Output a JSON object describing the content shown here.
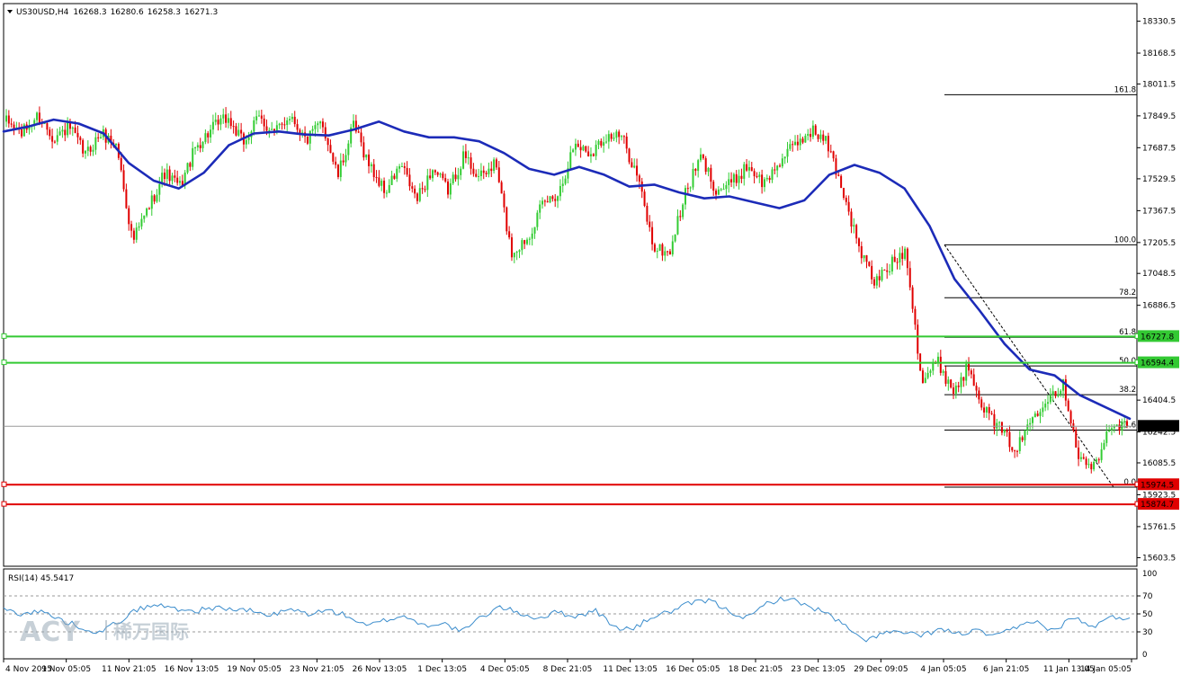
{
  "chart_data": {
    "type": "candlestick",
    "header": {
      "symbol": "US30USD,H4",
      "open": "16268.3",
      "high": "16280.6",
      "low": "16258.3",
      "close": "16271.3"
    },
    "price_axis": {
      "ticks": [
        "18330.5",
        "18168.5",
        "18011.5",
        "17849.5",
        "17687.5",
        "17529.5",
        "17367.5",
        "17205.5",
        "17048.5",
        "16886.5",
        "16404.5",
        "16242.5",
        "16085.5",
        "15923.5",
        "15761.5",
        "15603.5"
      ],
      "range": [
        15560,
        18420
      ]
    },
    "time_axis": {
      "labels": [
        "4 Nov 2015",
        "9 Nov 05:05",
        "11 Nov 21:05",
        "16 Nov 13:05",
        "19 Nov 05:05",
        "23 Nov 21:05",
        "26 Nov 13:05",
        "1 Dec 13:05",
        "4 Dec 05:05",
        "8 Dec 21:05",
        "11 Dec 13:05",
        "16 Dec 05:05",
        "18 Dec 21:05",
        "23 Dec 13:05",
        "29 Dec 09:05",
        "4 Jan 05:05",
        "6 Jan 21:05",
        "11 Jan 13:05",
        "14 Jan 05:05"
      ]
    },
    "price_path": [
      17820,
      17760,
      17850,
      17740,
      17790,
      17650,
      17760,
      17700,
      17210,
      17380,
      17560,
      17490,
      17690,
      17780,
      17840,
      17710,
      17840,
      17760,
      17860,
      17720,
      17820,
      17540,
      17800,
      17600,
      17460,
      17600,
      17420,
      17580,
      17470,
      17650,
      17530,
      17610,
      17150,
      17230,
      17400,
      17460,
      17710,
      17660,
      17750,
      17740,
      17540,
      17180,
      17150,
      17450,
      17640,
      17470,
      17510,
      17600,
      17500,
      17620,
      17700,
      17780,
      17710,
      17470,
      17180,
      17000,
      17090,
      17170,
      16500,
      16600,
      16450,
      16580,
      16350,
      16250,
      16150,
      16320,
      16430,
      16480,
      16100,
      16060,
      16290,
      16271
    ],
    "moving_average": [
      17770,
      17795,
      17830,
      17810,
      17760,
      17610,
      17520,
      17480,
      17560,
      17700,
      17760,
      17770,
      17755,
      17750,
      17780,
      17820,
      17770,
      17740,
      17740,
      17720,
      17660,
      17580,
      17550,
      17590,
      17550,
      17490,
      17500,
      17460,
      17430,
      17440,
      17410,
      17380,
      17420,
      17550,
      17600,
      17560,
      17480,
      17290,
      17020,
      16860,
      16690,
      16560,
      16530,
      16430,
      16370,
      16310
    ],
    "rsi": {
      "label": "RSI(14) 45.5417",
      "levels": [
        "70",
        "50",
        "30"
      ],
      "scale_top": "100",
      "scale_bottom": "0",
      "values": [
        55,
        50,
        53,
        43,
        36,
        29,
        41,
        55,
        60,
        56,
        53,
        57,
        55,
        53,
        48,
        55,
        50,
        54,
        48,
        36,
        43,
        48,
        37,
        40,
        30,
        46,
        58,
        51,
        45,
        52,
        47,
        54,
        35,
        33,
        47,
        53,
        62,
        65,
        53,
        45,
        62,
        68,
        60,
        52,
        38,
        20,
        28,
        30,
        25,
        33,
        28,
        31,
        25,
        34,
        43,
        30,
        47,
        35,
        46,
        45
      ]
    },
    "fibonacci": {
      "levels": [
        {
          "label": "161.8",
          "price": 17957
        },
        {
          "label": "100.0",
          "price": 17194
        },
        {
          "label": "78.2",
          "price": 16925
        },
        {
          "label": "61.8",
          "price": 16724
        },
        {
          "label": "50.0",
          "price": 16578
        },
        {
          "label": "38.2",
          "price": 16432
        },
        {
          "label": "23.6",
          "price": 16252
        },
        {
          "label": "0.0",
          "price": 15962
        }
      ]
    },
    "support_resistance": [
      {
        "value": "16727.8",
        "price": 16727.8,
        "color": "#33c933"
      },
      {
        "value": "16594.4",
        "price": 16594.4,
        "color": "#33c933"
      },
      {
        "value": "15974.5",
        "price": 15974.5,
        "color": "#e00000"
      },
      {
        "value": "15874.7",
        "price": 15874.7,
        "color": "#e00000"
      }
    ],
    "current_price": {
      "value": "16271.3",
      "price": 16271.3
    },
    "colors": {
      "bull": "#33cc33",
      "bear": "#e00000",
      "ma": "#1c2bb8",
      "rsi": "#3a8ccc",
      "text": "#000000",
      "grid_dash": "#999999"
    },
    "watermark": {
      "brand": "ACY",
      "chinese": "稀万国际"
    }
  }
}
